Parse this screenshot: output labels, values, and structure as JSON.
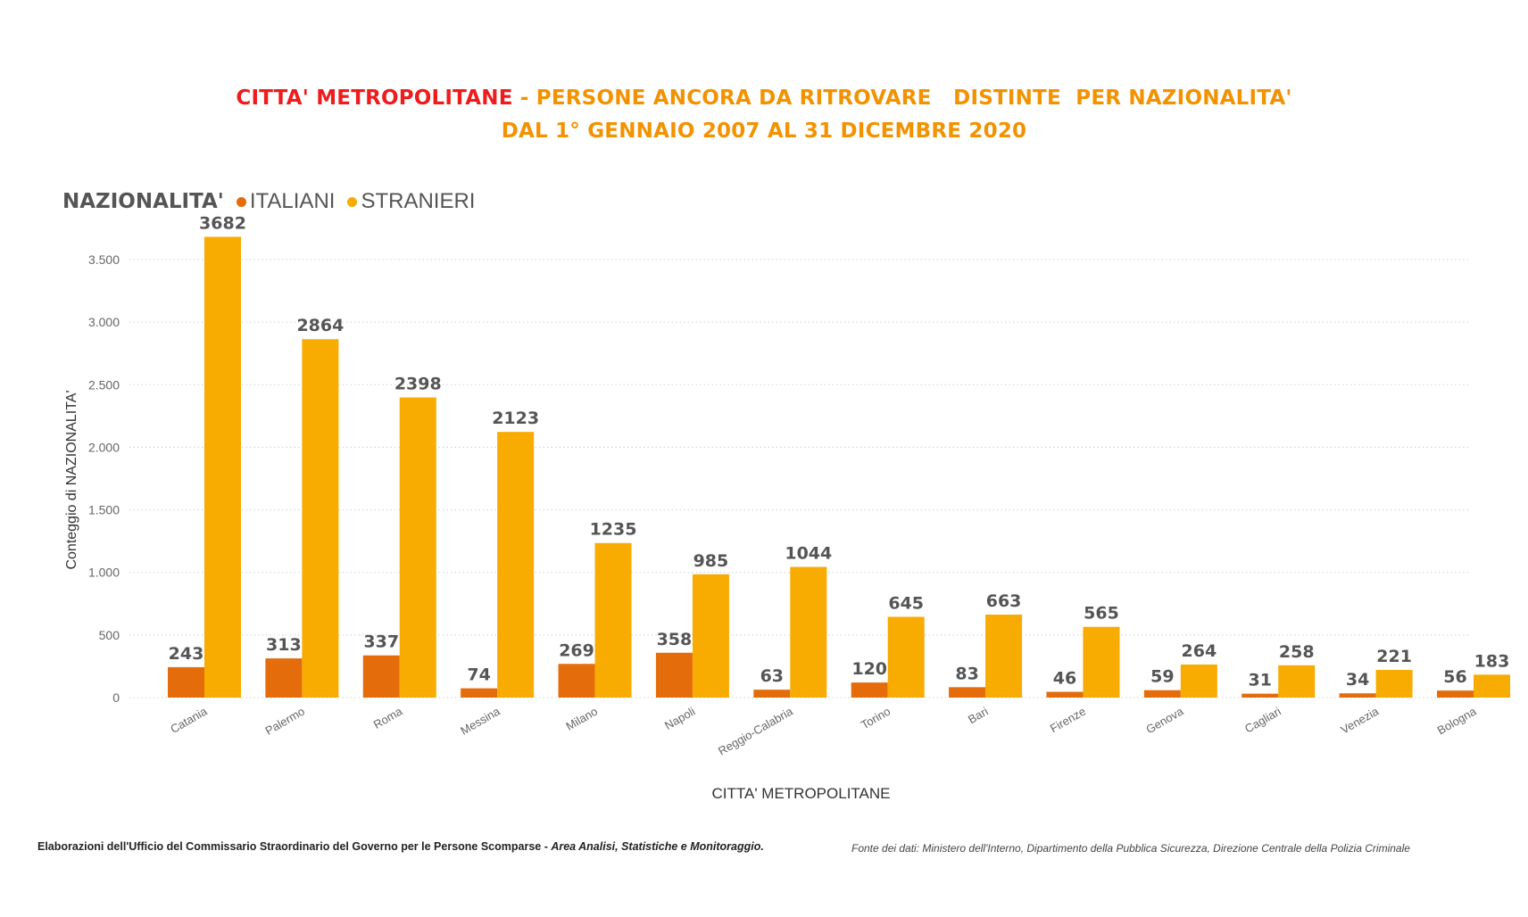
{
  "title": {
    "part1": "CITTA' METROPOLITANE",
    "part2": " - PERSONE ANCORA DA RITROVARE   DISTINTE  PER NAZIONALITA'",
    "line2": "DAL 1° GENNAIO 2007 AL 31 DICEMBRE 2020"
  },
  "legend": {
    "title": "NAZIONALITA'",
    "items": [
      {
        "label": "ITALIANI",
        "color": "#e46c0a"
      },
      {
        "label": "STRANIERI",
        "color": "#f8ab00"
      }
    ]
  },
  "footer": {
    "left_bold": "Elaborazioni dell'Ufficio del Commissario Straordinario  del Governo per le Persone Scomparse - ",
    "left_italic": "Area  Analisi, Statistiche  e Monitoraggio.",
    "right": "Fonte dei dati: Ministero dell'Interno, Dipartimento della Pubblica Sicurezza, Direzione Centrale della Polizia Criminale"
  },
  "chart_data": {
    "type": "bar",
    "xlabel": "CITTA' METROPOLITANE",
    "ylabel": "Conteggio di NAZIONALITA'",
    "ylim": [
      0,
      3700
    ],
    "yticks": [
      0,
      500,
      1000,
      1500,
      2000,
      2500,
      3000,
      3500
    ],
    "ytick_labels": [
      "0",
      "500",
      "1.000",
      "1.500",
      "2.000",
      "2.500",
      "3.000",
      "3.500"
    ],
    "grid": true,
    "legend_position": "top-left",
    "categories": [
      "Catania",
      "Palermo",
      "Roma",
      "Messina",
      "Milano",
      "Napoli",
      "Reggio-Calabria",
      "Torino",
      "Bari",
      "Firenze",
      "Genova",
      "Cagliari",
      "Venezia",
      "Bologna"
    ],
    "series": [
      {
        "name": "ITALIANI",
        "color": "#e46c0a",
        "values": [
          243,
          313,
          337,
          74,
          269,
          358,
          63,
          120,
          83,
          46,
          59,
          31,
          34,
          56
        ]
      },
      {
        "name": "STRANIERI",
        "color": "#f8ab00",
        "values": [
          3682,
          2864,
          2398,
          2123,
          1235,
          985,
          1044,
          645,
          663,
          565,
          264,
          258,
          221,
          183
        ]
      }
    ]
  }
}
